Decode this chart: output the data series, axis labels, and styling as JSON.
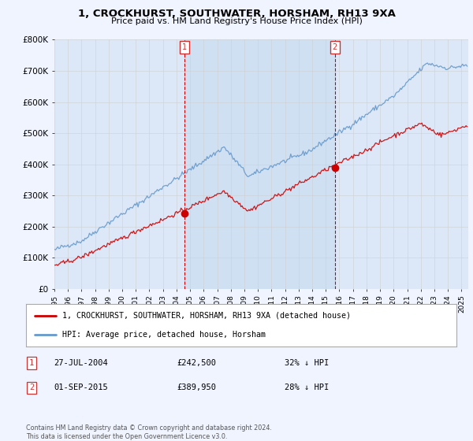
{
  "title": "1, CROCKHURST, SOUTHWATER, HORSHAM, RH13 9XA",
  "subtitle": "Price paid vs. HM Land Registry's House Price Index (HPI)",
  "red_label": "1, CROCKHURST, SOUTHWATER, HORSHAM, RH13 9XA (detached house)",
  "blue_label": "HPI: Average price, detached house, Horsham",
  "purchase1_date": 2004.57,
  "purchase1_price": 242500,
  "purchase2_date": 2015.67,
  "purchase2_price": 389950,
  "annotation1": [
    "1",
    "27-JUL-2004",
    "£242,500",
    "32% ↓ HPI"
  ],
  "annotation2": [
    "2",
    "01-SEP-2015",
    "£389,950",
    "28% ↓ HPI"
  ],
  "footer": "Contains HM Land Registry data © Crown copyright and database right 2024.\nThis data is licensed under the Open Government Licence v3.0.",
  "ylim": [
    0,
    800000
  ],
  "xlim_start": 1995.0,
  "xlim_end": 2025.5,
  "bg_color": "#f0f4ff",
  "plot_bg": "#dce8f8",
  "shade_color": "#c8dcf0",
  "red_color": "#cc0000",
  "blue_color": "#6699cc",
  "grid_color": "#cccccc",
  "marker_box_color": "#cc3333"
}
